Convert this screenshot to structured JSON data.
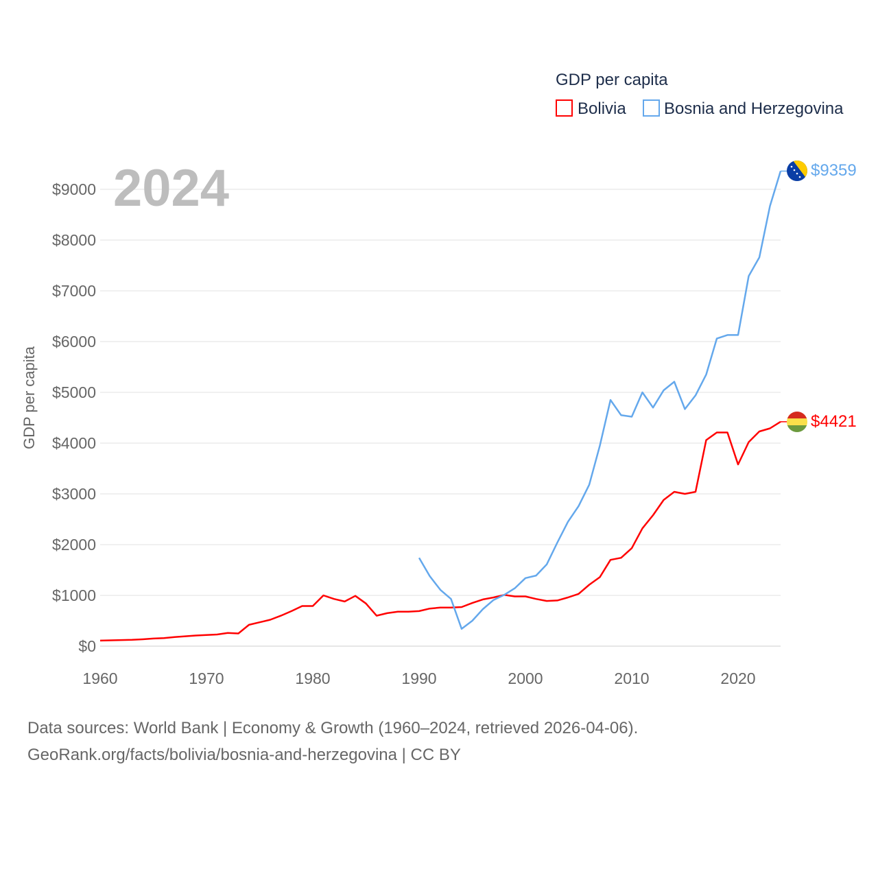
{
  "chart_data": {
    "type": "line",
    "title": "GDP per capita",
    "year_label": "2024",
    "ylabel": "GDP per capita",
    "xlabel": "",
    "xlim": [
      1960,
      2024
    ],
    "ylim": [
      0,
      9000
    ],
    "x_ticks": [
      "1960",
      "1970",
      "1980",
      "1990",
      "2000",
      "2010",
      "2020"
    ],
    "y_ticks": [
      "$0",
      "$1000",
      "$2000",
      "$3000",
      "$4000",
      "$5000",
      "$6000",
      "$7000",
      "$8000",
      "$9000"
    ],
    "grid": true,
    "legend_position": "top-right",
    "series": [
      {
        "name": "Bolivia",
        "color": "#ff0000",
        "end_label": "$4421",
        "start_year": 1960,
        "values": [
          110,
          115,
          120,
          125,
          135,
          150,
          160,
          180,
          195,
          210,
          220,
          230,
          260,
          250,
          420,
          470,
          520,
          600,
          690,
          790,
          790,
          1000,
          930,
          880,
          990,
          840,
          600,
          650,
          680,
          680,
          690,
          740,
          760,
          760,
          770,
          850,
          920,
          960,
          1010,
          980,
          980,
          930,
          890,
          900,
          960,
          1030,
          1210,
          1360,
          1700,
          1740,
          1930,
          2320,
          2580,
          2880,
          3040,
          3000,
          3040,
          4060,
          4210,
          4210,
          3580,
          4020,
          4230,
          4290,
          4421
        ]
      },
      {
        "name": "Bosnia and Herzegovina",
        "color": "#64a8ec",
        "end_label": "$9359",
        "start_year": 1990,
        "values": [
          1740,
          1380,
          1110,
          930,
          340,
          500,
          730,
          910,
          1010,
          1140,
          1340,
          1390,
          1610,
          2040,
          2450,
          2760,
          3180,
          3950,
          4850,
          4550,
          4520,
          5000,
          4700,
          5040,
          5210,
          4670,
          4940,
          5350,
          6060,
          6130,
          6130,
          7290,
          7660,
          8670,
          9359
        ]
      }
    ]
  },
  "footer": {
    "line1": "Data sources: World Bank | Economy & Growth (1960–2024, retrieved 2026-04-06).",
    "line2": "GeoRank.org/facts/bolivia/bosnia-and-herzegovina | CC BY"
  }
}
